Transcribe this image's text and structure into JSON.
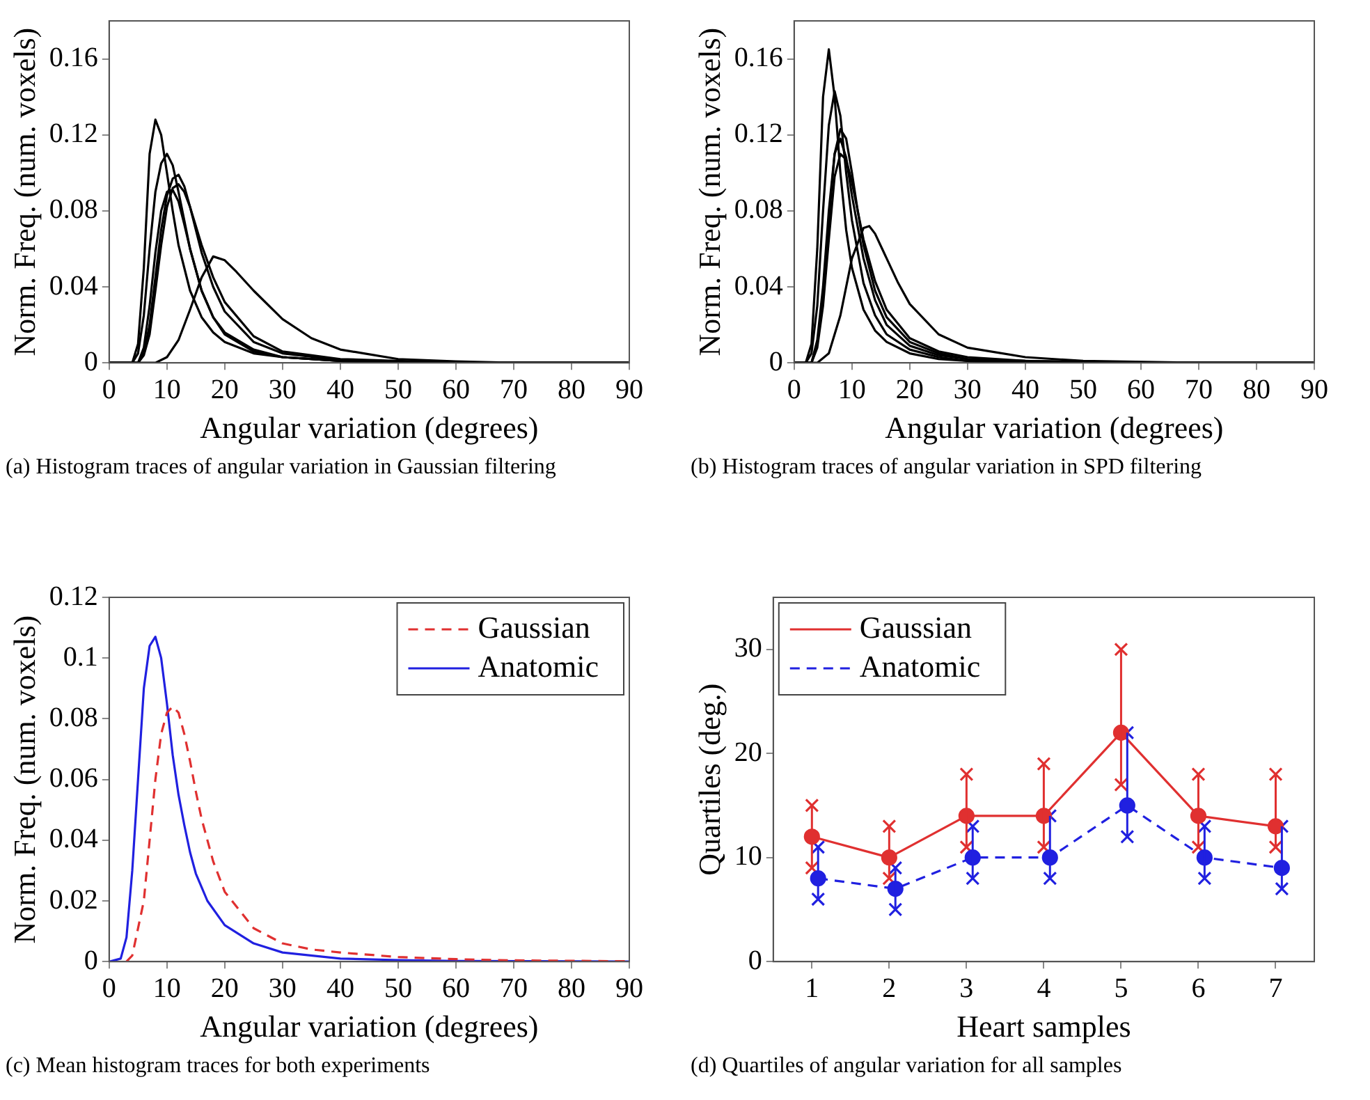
{
  "chart_data": [
    {
      "type": "line",
      "title": "(a) Histogram traces of angular variation in Gaussian filtering",
      "xlabel": "Angular variation (degrees)",
      "ylabel": "Norm. Freq. (num. voxels)",
      "xlim": [
        0,
        90
      ],
      "xticks": [
        0,
        10,
        20,
        30,
        40,
        50,
        60,
        70,
        80,
        90
      ],
      "ylim": [
        0,
        0.18
      ],
      "yticks": [
        0,
        0.04,
        0.08,
        0.12,
        0.16
      ],
      "series": [
        {
          "color": "#000000",
          "x": [
            0,
            4,
            5,
            6,
            7,
            8,
            9,
            10,
            11,
            12,
            14,
            16,
            18,
            20,
            25,
            30,
            40,
            60,
            90
          ],
          "values": [
            0,
            0,
            0.01,
            0.05,
            0.11,
            0.128,
            0.12,
            0.1,
            0.08,
            0.062,
            0.038,
            0.024,
            0.016,
            0.011,
            0.005,
            0.003,
            0.001,
            0,
            0
          ]
        },
        {
          "color": "#000000",
          "x": [
            0,
            4,
            5,
            6,
            7,
            8,
            9,
            10,
            11,
            12,
            14,
            16,
            18,
            20,
            25,
            30,
            40,
            60,
            90
          ],
          "values": [
            0,
            0,
            0.005,
            0.025,
            0.06,
            0.09,
            0.105,
            0.11,
            0.104,
            0.09,
            0.06,
            0.038,
            0.024,
            0.016,
            0.007,
            0.003,
            0.001,
            0,
            0
          ]
        },
        {
          "color": "#000000",
          "x": [
            0,
            5,
            6,
            7,
            8,
            9,
            10,
            11,
            12,
            13,
            14,
            16,
            18,
            20,
            25,
            30,
            40,
            60,
            90
          ],
          "values": [
            0,
            0,
            0.005,
            0.02,
            0.045,
            0.07,
            0.088,
            0.097,
            0.099,
            0.093,
            0.082,
            0.058,
            0.04,
            0.027,
            0.011,
            0.005,
            0.0015,
            0,
            0
          ]
        },
        {
          "color": "#000000",
          "x": [
            0,
            5,
            6,
            7,
            8,
            9,
            10,
            11,
            12,
            13,
            14,
            16,
            18,
            20,
            25,
            30,
            40,
            60,
            90
          ],
          "values": [
            0,
            0,
            0.004,
            0.015,
            0.038,
            0.062,
            0.082,
            0.092,
            0.094,
            0.09,
            0.082,
            0.062,
            0.045,
            0.032,
            0.014,
            0.006,
            0.002,
            0,
            0
          ]
        },
        {
          "color": "#000000",
          "x": [
            0,
            5,
            6,
            7,
            8,
            9,
            10,
            11,
            12,
            13,
            14,
            16,
            18,
            20,
            25,
            30,
            40,
            60,
            90
          ],
          "values": [
            0,
            0,
            0.008,
            0.03,
            0.058,
            0.08,
            0.09,
            0.091,
            0.085,
            0.073,
            0.06,
            0.038,
            0.024,
            0.015,
            0.006,
            0.003,
            0.001,
            0,
            0
          ]
        },
        {
          "color": "#000000",
          "x": [
            0,
            8,
            10,
            12,
            14,
            16,
            18,
            20,
            22,
            25,
            30,
            35,
            40,
            50,
            60,
            70,
            90
          ],
          "values": [
            0,
            0,
            0.003,
            0.012,
            0.028,
            0.045,
            0.056,
            0.054,
            0.048,
            0.038,
            0.023,
            0.013,
            0.007,
            0.002,
            0.0008,
            0,
            0
          ]
        }
      ]
    },
    {
      "type": "line",
      "title": "(b) Histogram traces of angular variation in SPD filtering",
      "xlabel": "Angular variation (degrees)",
      "ylabel": "Norm. Freq. (num. voxels)",
      "xlim": [
        0,
        90
      ],
      "xticks": [
        0,
        10,
        20,
        30,
        40,
        50,
        60,
        70,
        80,
        90
      ],
      "ylim": [
        0,
        0.18
      ],
      "yticks": [
        0,
        0.04,
        0.08,
        0.12,
        0.16
      ],
      "series": [
        {
          "color": "#000000",
          "x": [
            0,
            2,
            3,
            4,
            5,
            6,
            7,
            8,
            9,
            10,
            12,
            14,
            16,
            20,
            25,
            30,
            40,
            90
          ],
          "values": [
            0,
            0,
            0.01,
            0.06,
            0.14,
            0.165,
            0.14,
            0.1,
            0.07,
            0.05,
            0.028,
            0.017,
            0.011,
            0.005,
            0.002,
            0.001,
            0,
            0
          ]
        },
        {
          "color": "#000000",
          "x": [
            0,
            2,
            3,
            4,
            5,
            6,
            7,
            8,
            9,
            10,
            12,
            14,
            16,
            20,
            25,
            30,
            40,
            90
          ],
          "values": [
            0,
            0,
            0.005,
            0.03,
            0.08,
            0.125,
            0.143,
            0.13,
            0.1,
            0.075,
            0.042,
            0.025,
            0.015,
            0.007,
            0.003,
            0.001,
            0,
            0
          ]
        },
        {
          "color": "#000000",
          "x": [
            0,
            3,
            4,
            5,
            6,
            7,
            8,
            9,
            10,
            11,
            12,
            14,
            16,
            20,
            25,
            30,
            40,
            60,
            90
          ],
          "values": [
            0,
            0,
            0.01,
            0.035,
            0.075,
            0.11,
            0.123,
            0.118,
            0.1,
            0.08,
            0.062,
            0.038,
            0.024,
            0.011,
            0.005,
            0.002,
            0.001,
            0,
            0
          ]
        },
        {
          "color": "#000000",
          "x": [
            0,
            3,
            4,
            5,
            6,
            7,
            8,
            9,
            10,
            12,
            14,
            16,
            20,
            25,
            30,
            40,
            90
          ],
          "values": [
            0,
            0,
            0.012,
            0.04,
            0.08,
            0.11,
            0.118,
            0.108,
            0.088,
            0.055,
            0.033,
            0.02,
            0.009,
            0.004,
            0.002,
            0,
            0
          ]
        },
        {
          "color": "#000000",
          "x": [
            0,
            3,
            4,
            5,
            6,
            7,
            8,
            9,
            10,
            12,
            14,
            16,
            20,
            25,
            30,
            40,
            60,
            90
          ],
          "values": [
            0,
            0,
            0.008,
            0.03,
            0.065,
            0.098,
            0.11,
            0.107,
            0.095,
            0.065,
            0.043,
            0.028,
            0.013,
            0.006,
            0.003,
            0.001,
            0,
            0
          ]
        },
        {
          "color": "#000000",
          "x": [
            0,
            4,
            6,
            8,
            10,
            12,
            13,
            14,
            16,
            18,
            20,
            25,
            30,
            40,
            50,
            70,
            90
          ],
          "values": [
            0,
            0,
            0.005,
            0.025,
            0.055,
            0.071,
            0.072,
            0.068,
            0.055,
            0.042,
            0.031,
            0.015,
            0.008,
            0.003,
            0.001,
            0,
            0
          ]
        }
      ]
    },
    {
      "type": "line",
      "title": "(c) Mean histogram traces for both experiments",
      "xlabel": "Angular variation (degrees)",
      "ylabel": "Norm. Freq. (num. voxels)",
      "xlim": [
        0,
        90
      ],
      "xticks": [
        0,
        10,
        20,
        30,
        40,
        50,
        60,
        70,
        80,
        90
      ],
      "ylim": [
        0,
        0.12
      ],
      "yticks": [
        0,
        0.02,
        0.04,
        0.06,
        0.08,
        0.1,
        0.12
      ],
      "legend": "top right",
      "series": [
        {
          "name": "Gaussian",
          "color": "#e03030",
          "line_style": "dashed",
          "x": [
            3,
            4,
            6,
            7,
            8,
            9,
            10,
            11,
            12,
            13,
            14,
            15,
            16,
            18,
            20,
            25,
            30,
            35,
            40,
            50,
            60,
            70,
            90
          ],
          "values": [
            0,
            0.002,
            0.02,
            0.04,
            0.06,
            0.075,
            0.082,
            0.084,
            0.082,
            0.075,
            0.066,
            0.056,
            0.047,
            0.033,
            0.023,
            0.011,
            0.006,
            0.004,
            0.003,
            0.0015,
            0.0008,
            0.0004,
            0.0001
          ]
        },
        {
          "name": "Anatomic",
          "color": "#2020e0",
          "line_style": "solid",
          "x": [
            0,
            2,
            3,
            4,
            5,
            6,
            7,
            8,
            9,
            10,
            11,
            12,
            13,
            14,
            15,
            17,
            20,
            25,
            30,
            40,
            50,
            60,
            90
          ],
          "values": [
            0,
            0.001,
            0.008,
            0.03,
            0.06,
            0.09,
            0.104,
            0.107,
            0.1,
            0.085,
            0.068,
            0.055,
            0.045,
            0.036,
            0.029,
            0.02,
            0.012,
            0.006,
            0.003,
            0.001,
            0.0005,
            0.0002,
            0
          ]
        }
      ]
    },
    {
      "type": "line",
      "title": "(d) Quartiles of angular variation for all samples",
      "xlabel": "Heart samples",
      "ylabel": "Quartiles (deg.)",
      "xlim": [
        0.5,
        7.5
      ],
      "xticks": [
        1,
        2,
        3,
        4,
        5,
        6,
        7
      ],
      "ylim": [
        0,
        35
      ],
      "yticks": [
        0,
        10,
        20,
        30
      ],
      "legend": "top left",
      "marker": "circle",
      "series": [
        {
          "name": "Gaussian",
          "color": "#e03030",
          "line_style": "solid",
          "x": [
            1,
            2,
            3,
            4,
            5,
            6,
            7
          ],
          "values": [
            12,
            10,
            14,
            14,
            22,
            14,
            13
          ],
          "errors": [
            [
              9,
              15
            ],
            [
              8,
              13
            ],
            [
              11,
              18
            ],
            [
              11,
              19
            ],
            [
              17,
              30
            ],
            [
              11,
              18
            ],
            [
              11,
              18
            ]
          ]
        },
        {
          "name": "Anatomic",
          "color": "#2020e0",
          "line_style": "dashed",
          "x": [
            1.08,
            2.08,
            3.08,
            4.08,
            5.08,
            6.08,
            7.08
          ],
          "values": [
            8,
            7,
            10,
            10,
            15,
            10,
            9
          ],
          "errors": [
            [
              6,
              11
            ],
            [
              5,
              9
            ],
            [
              8,
              13
            ],
            [
              8,
              14
            ],
            [
              12,
              22
            ],
            [
              8,
              13
            ],
            [
              7,
              13
            ]
          ]
        },
        {
          "type": "scatter",
          "color": "#e03030",
          "marker": "cross",
          "x": [
            1,
            2,
            3,
            4,
            5,
            6,
            7
          ],
          "values": [
            9,
            8,
            11,
            11,
            17,
            11,
            11
          ]
        },
        {
          "type": "scatter",
          "color": "#e03030",
          "marker": "cross",
          "x": [
            1,
            2,
            3,
            4,
            5,
            6,
            7
          ],
          "values": [
            15,
            13,
            18,
            19,
            30,
            18,
            18
          ]
        },
        {
          "type": "scatter",
          "color": "#2020e0",
          "marker": "cross",
          "x": [
            1.08,
            2.08,
            3.08,
            4.08,
            5.08,
            6.08,
            7.08
          ],
          "values": [
            6,
            5,
            8,
            8,
            12,
            8,
            7
          ]
        },
        {
          "type": "scatter",
          "color": "#2020e0",
          "marker": "cross",
          "x": [
            1.08,
            2.08,
            3.08,
            4.08,
            5.08,
            6.08,
            7.08
          ],
          "values": [
            11,
            9,
            13,
            14,
            22,
            13,
            13
          ]
        }
      ]
    }
  ]
}
